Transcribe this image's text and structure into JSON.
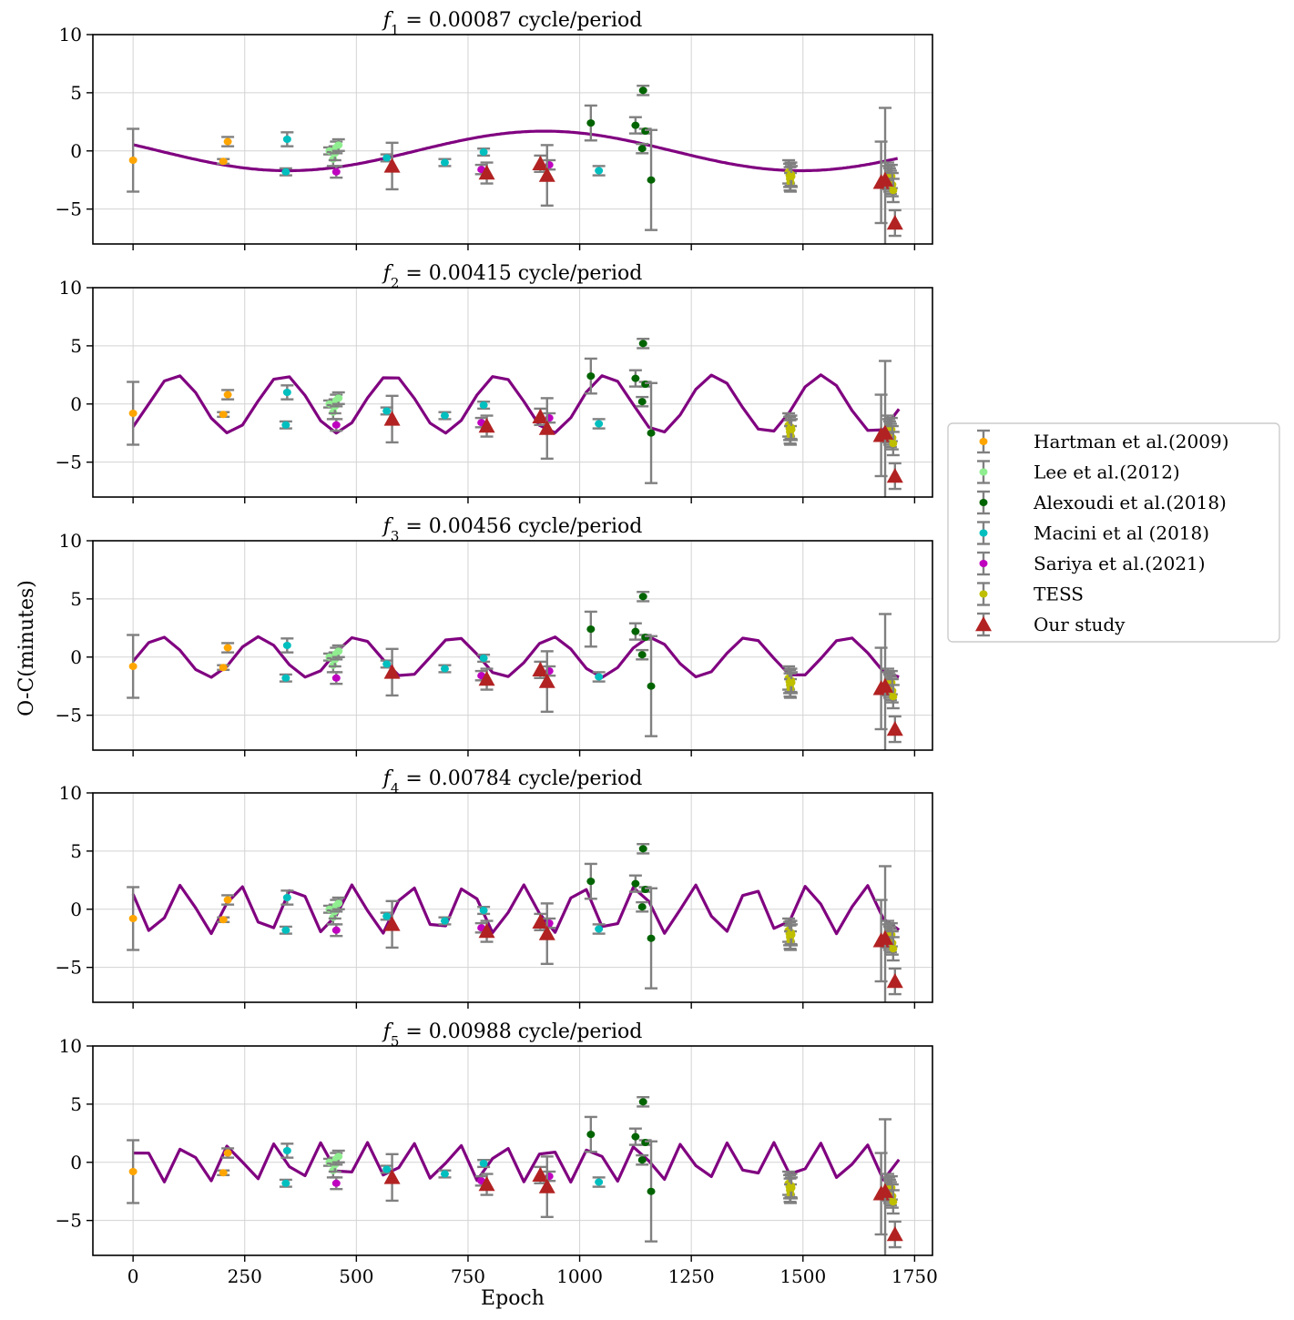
{
  "chart_data": {
    "type": "scatter",
    "figure_ylabel": "O-C(minutes)",
    "xlabel": "Epoch",
    "xlim": [
      -90,
      1790
    ],
    "ylim": [
      -8,
      10
    ],
    "xticks": [
      0,
      250,
      500,
      750,
      1000,
      1250,
      1500,
      1750
    ],
    "yticks": [
      -5,
      0,
      5,
      10
    ],
    "y_tick_labels": [
      "−5",
      "0",
      "5",
      "10"
    ],
    "grid": true,
    "legend_position": "right",
    "panels": [
      {
        "label": "f",
        "sub": "1",
        "suffix": " = 0.00087 cycle/period",
        "frequency": 0.00087,
        "amplitude": 1.7,
        "phase": 1.25,
        "offset": 0.0,
        "style": "smooth"
      },
      {
        "label": "f",
        "sub": "2",
        "suffix": " = 0.00415 cycle/period",
        "frequency": 0.00415,
        "amplitude": 2.5,
        "phase": 3.8,
        "offset": 0.0,
        "style": "sampled"
      },
      {
        "label": "f",
        "sub": "3",
        "suffix": " = 0.00456 cycle/period",
        "frequency": 0.00456,
        "amplitude": 1.75,
        "phase": 4.5,
        "offset": 0.0,
        "style": "sampled"
      },
      {
        "label": "f",
        "sub": "4",
        "suffix": " = 0.00784 cycle/period",
        "frequency": 0.00784,
        "amplitude": 2.1,
        "phase": 0.9,
        "offset": 0.0,
        "style": "sampled"
      },
      {
        "label": "f",
        "sub": "5",
        "suffix": " = 0.00988 cycle/period",
        "frequency": 0.00988,
        "amplitude": 1.7,
        "phase": 5.2,
        "offset": 0.0,
        "style": "sampled"
      }
    ],
    "model_line_color": "#800080",
    "errorbar_color": "#808080",
    "series": [
      {
        "name": "Hartman et al.(2009)",
        "color": "#ffa500",
        "marker": "circle",
        "points": [
          {
            "x": 0,
            "y": -0.8,
            "err": 2.7
          },
          {
            "x": 202,
            "y": -0.9,
            "err": 0.2
          },
          {
            "x": 212,
            "y": 0.8,
            "err": 0.4
          }
        ]
      },
      {
        "name": "Lee et al.(2012)",
        "color": "#90ee90",
        "marker": "circle",
        "points": [
          {
            "x": 440,
            "y": 0.0,
            "err": 0.3
          },
          {
            "x": 448,
            "y": -0.7,
            "err": 0.6
          },
          {
            "x": 452,
            "y": -0.2,
            "err": 0.6
          },
          {
            "x": 455,
            "y": 0.3,
            "err": 0.5
          },
          {
            "x": 460,
            "y": 0.5,
            "err": 0.5
          }
        ]
      },
      {
        "name": "Alexoudi et al.(2018)",
        "color": "#006400",
        "marker": "circle",
        "points": [
          {
            "x": 1025,
            "y": 2.4,
            "err": 1.5
          },
          {
            "x": 1125,
            "y": 2.2,
            "err": 0.7
          },
          {
            "x": 1140,
            "y": 0.2,
            "err": 0.4
          },
          {
            "x": 1142,
            "y": 5.2,
            "err": 0.4
          },
          {
            "x": 1147,
            "y": 1.7,
            "err": 0.2
          },
          {
            "x": 1160,
            "y": -2.5,
            "err": 4.3
          }
        ]
      },
      {
        "name": "Macini et al (2018)",
        "color": "#00bfbf",
        "marker": "circle",
        "points": [
          {
            "x": 342,
            "y": -1.8,
            "err": 0.3
          },
          {
            "x": 345,
            "y": 1.0,
            "err": 0.6
          },
          {
            "x": 568,
            "y": -0.6,
            "err": 0.3
          },
          {
            "x": 698,
            "y": -1.0,
            "err": 0.3
          },
          {
            "x": 785,
            "y": -0.1,
            "err": 0.3
          },
          {
            "x": 1043,
            "y": -1.7,
            "err": 0.4
          }
        ]
      },
      {
        "name": "Sariya et al.(2021)",
        "color": "#bf00bf",
        "marker": "circle",
        "points": [
          {
            "x": 455,
            "y": -1.8,
            "err": 0.5
          },
          {
            "x": 780,
            "y": -1.6,
            "err": 0.4
          },
          {
            "x": 932,
            "y": -1.2,
            "err": 0.4
          }
        ]
      },
      {
        "name": "TESS",
        "color": "#bfbf00",
        "marker": "circle",
        "points": [
          {
            "x": 1468,
            "y": -1.8,
            "err": 1.0
          },
          {
            "x": 1470,
            "y": -2.1,
            "err": 1.0
          },
          {
            "x": 1471,
            "y": -2.4,
            "err": 1.0
          },
          {
            "x": 1472,
            "y": -2.7,
            "err": 0.8
          },
          {
            "x": 1473,
            "y": -2.0,
            "err": 1.0
          },
          {
            "x": 1474,
            "y": -2.2,
            "err": 0.9
          },
          {
            "x": 1690,
            "y": -2.0,
            "err": 1.0
          },
          {
            "x": 1692,
            "y": -2.3,
            "err": 1.0
          },
          {
            "x": 1694,
            "y": -2.5,
            "err": 1.0
          },
          {
            "x": 1696,
            "y": -2.7,
            "err": 1.0
          },
          {
            "x": 1698,
            "y": -2.2,
            "err": 1.0
          },
          {
            "x": 1700,
            "y": -2.9,
            "err": 1.0
          },
          {
            "x": 1702,
            "y": -3.4,
            "err": 1.0
          }
        ]
      },
      {
        "name": "Our study",
        "color": "#b22222",
        "marker": "triangle",
        "points": [
          {
            "x": 580,
            "y": -1.3,
            "err": 2.0
          },
          {
            "x": 792,
            "y": -1.9,
            "err": 0.9
          },
          {
            "x": 912,
            "y": -1.1,
            "err": 0.7
          },
          {
            "x": 927,
            "y": -2.1,
            "err": 2.6
          },
          {
            "x": 1675,
            "y": -2.7,
            "err": 3.5
          },
          {
            "x": 1684,
            "y": -2.5,
            "err": 6.2
          },
          {
            "x": 1706,
            "y": -6.2,
            "err": 1.1
          }
        ]
      }
    ]
  }
}
